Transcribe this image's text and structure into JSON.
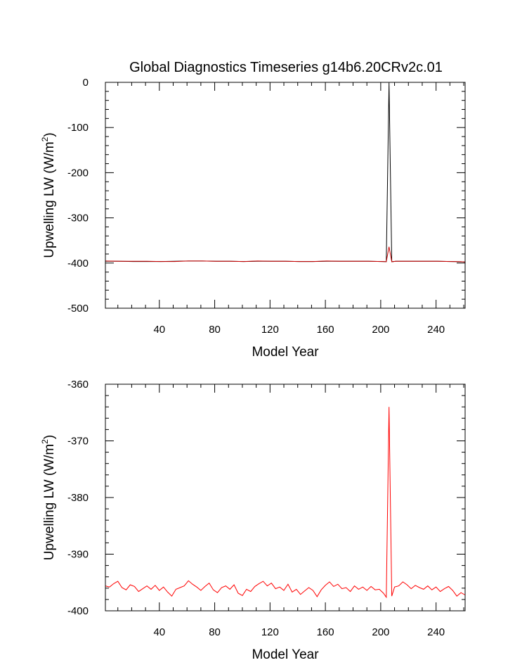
{
  "chart_data": [
    {
      "type": "line",
      "title": "Global Diagnostics Timeseries g14b6.20CRv2c.01",
      "xlabel": "Model Year",
      "ylabel": "Upwelling LW (W/m",
      "ylabel_sup": "2",
      "ylabel_end": ")",
      "xlim": [
        1,
        261
      ],
      "ylim": [
        -500,
        0
      ],
      "xticks": [
        40,
        80,
        120,
        160,
        200,
        240
      ],
      "yticks": [
        0,
        -100,
        -200,
        -300,
        -400,
        -500
      ],
      "x": [
        1,
        11,
        21,
        31,
        41,
        51,
        61,
        71,
        81,
        91,
        101,
        111,
        121,
        131,
        141,
        151,
        161,
        171,
        181,
        191,
        201,
        204,
        206,
        208,
        211,
        221,
        231,
        241,
        251,
        258,
        261
      ],
      "series": [
        {
          "color": "#000000",
          "values": [
            -396,
            -396,
            -396.5,
            -396.5,
            -396.5,
            -396,
            -395.5,
            -395.5,
            -396,
            -396,
            -396.5,
            -396,
            -396,
            -396,
            -396.5,
            -396.5,
            -396,
            -396,
            -396,
            -396,
            -396.5,
            -397,
            -1,
            -397,
            -396,
            -396,
            -396,
            -396,
            -396.5,
            -397,
            -397.5
          ]
        },
        {
          "color": "#cc0000",
          "values": [
            -395.5,
            -396,
            -396,
            -396,
            -396.5,
            -396.5,
            -395.5,
            -395.5,
            -396,
            -396,
            -396.5,
            -395.5,
            -396,
            -396,
            -396.5,
            -396.5,
            -395.5,
            -396,
            -396,
            -396,
            -396.5,
            -397,
            -364,
            -397,
            -396,
            -396,
            -396,
            -396,
            -396.5,
            -397,
            -397.5
          ]
        }
      ]
    },
    {
      "type": "line",
      "title": "",
      "xlabel": "Model Year",
      "ylabel": "Upwelling LW (W/m",
      "ylabel_sup": "2",
      "ylabel_end": ")",
      "xlim": [
        1,
        261
      ],
      "ylim": [
        -400,
        -360
      ],
      "xticks": [
        40,
        80,
        120,
        160,
        200,
        240
      ],
      "yticks": [
        -360,
        -370,
        -380,
        -390,
        -400
      ],
      "x": [
        1,
        4,
        7,
        10,
        13,
        16,
        19,
        22,
        25,
        28,
        31,
        34,
        37,
        40,
        43,
        46,
        49,
        52,
        55,
        58,
        61,
        64,
        67,
        70,
        73,
        76,
        79,
        82,
        85,
        88,
        91,
        94,
        97,
        100,
        103,
        106,
        109,
        112,
        115,
        118,
        121,
        124,
        127,
        130,
        133,
        136,
        139,
        142,
        145,
        148,
        151,
        154,
        157,
        160,
        163,
        166,
        169,
        172,
        175,
        178,
        181,
        184,
        187,
        190,
        193,
        196,
        199,
        202,
        204,
        206,
        208,
        210,
        213,
        216,
        219,
        222,
        225,
        228,
        231,
        234,
        237,
        240,
        243,
        246,
        249,
        252,
        255,
        258,
        261
      ],
      "series": [
        {
          "color": "#ff0000",
          "values": [
            -395.6,
            -395.8,
            -395.2,
            -394.8,
            -395.9,
            -396.3,
            -395.4,
            -395.7,
            -396.6,
            -396.1,
            -395.6,
            -396.2,
            -395.5,
            -396.4,
            -395.8,
            -396.7,
            -397.4,
            -396.2,
            -395.9,
            -395.6,
            -394.7,
            -395.3,
            -395.8,
            -396.4,
            -395.7,
            -395.1,
            -396.3,
            -396.8,
            -395.9,
            -395.6,
            -396.2,
            -395.4,
            -396.9,
            -397.3,
            -396.2,
            -396.6,
            -395.7,
            -395.2,
            -394.8,
            -395.6,
            -395.1,
            -396.1,
            -395.8,
            -396.4,
            -395.3,
            -396.7,
            -396.2,
            -397.1,
            -396.5,
            -395.9,
            -396.4,
            -397.5,
            -396.3,
            -395.5,
            -394.9,
            -395.7,
            -395.3,
            -396.1,
            -395.9,
            -396.6,
            -395.6,
            -396.2,
            -395.8,
            -396.4,
            -395.7,
            -396.3,
            -396.2,
            -396.9,
            -397.6,
            -364.0,
            -397.4,
            -395.8,
            -395.6,
            -394.9,
            -395.4,
            -396.1,
            -395.5,
            -395.9,
            -396.2,
            -395.6,
            -396.3,
            -395.8,
            -396.6,
            -396.1,
            -395.7,
            -396.4,
            -397.4,
            -396.8,
            -397.2
          ]
        }
      ]
    }
  ]
}
